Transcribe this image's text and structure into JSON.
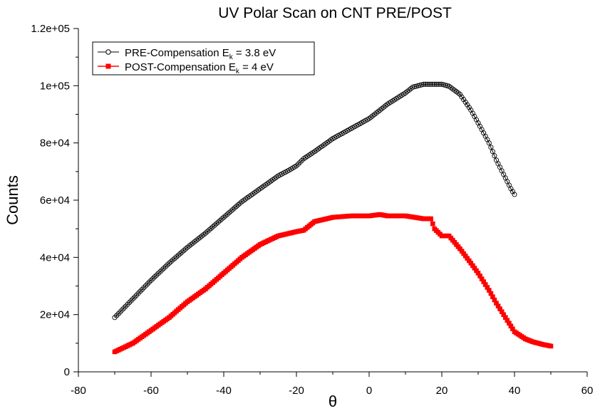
{
  "chart_data": {
    "type": "scatter",
    "title": "UV Polar Scan on CNT PRE/POST",
    "xlabel": "θ",
    "ylabel": "Counts",
    "xlim": [
      -80,
      60
    ],
    "ylim": [
      0,
      120000
    ],
    "x_ticks": [
      "-80",
      "-60",
      "-40",
      "-20",
      "0",
      "20",
      "40",
      "60"
    ],
    "y_ticks": [
      "0",
      "2e+04",
      "4e+04",
      "6e+04",
      "8e+04",
      "1e+05",
      "1.2e+05"
    ],
    "grid": false,
    "legend_position": "top-left",
    "series": [
      {
        "name": "PRE-Compensation E_k = 3.8 eV",
        "legend_main": "PRE-Compensation E",
        "legend_sub": "k",
        "legend_tail": " = 3.8 eV",
        "color": "#000000",
        "marker": "open-circle",
        "x": [
          -70,
          -65,
          -60,
          -55,
          -50,
          -45,
          -40,
          -35,
          -30,
          -25,
          -22,
          -20,
          -18,
          -15,
          -10,
          -5,
          0,
          5,
          10,
          12,
          15,
          18,
          20,
          22,
          25,
          28,
          30,
          33,
          35,
          37,
          39,
          40
        ],
        "y": [
          19000,
          25500,
          32000,
          38000,
          43500,
          48500,
          54000,
          59500,
          64000,
          68500,
          70500,
          72000,
          74500,
          77000,
          81500,
          85000,
          88500,
          93500,
          97500,
          99500,
          100500,
          100500,
          100500,
          99800,
          97000,
          91500,
          87000,
          80000,
          74000,
          69000,
          64000,
          62000
        ]
      },
      {
        "name": "POST-Compensation E_k = 4 eV",
        "legend_main": "POST-Compensation E",
        "legend_sub": "k",
        "legend_tail": " = 4 eV",
        "color": "#ff0000",
        "marker": "filled-square",
        "x": [
          -70,
          -65,
          -60,
          -55,
          -50,
          -45,
          -40,
          -35,
          -30,
          -25,
          -20,
          -18,
          -15,
          -10,
          -5,
          0,
          3,
          5,
          10,
          15,
          17,
          18,
          20,
          22,
          25,
          28,
          30,
          33,
          35,
          38,
          40,
          43,
          45,
          48,
          50
        ],
        "y": [
          7000,
          10000,
          14500,
          19000,
          24500,
          29000,
          34500,
          40000,
          44500,
          47500,
          49000,
          49500,
          52500,
          54000,
          54500,
          54500,
          55000,
          54500,
          54500,
          53500,
          53500,
          50000,
          47500,
          47500,
          43000,
          38000,
          34500,
          28500,
          24000,
          18000,
          14000,
          11500,
          10500,
          9500,
          9000
        ]
      }
    ]
  }
}
